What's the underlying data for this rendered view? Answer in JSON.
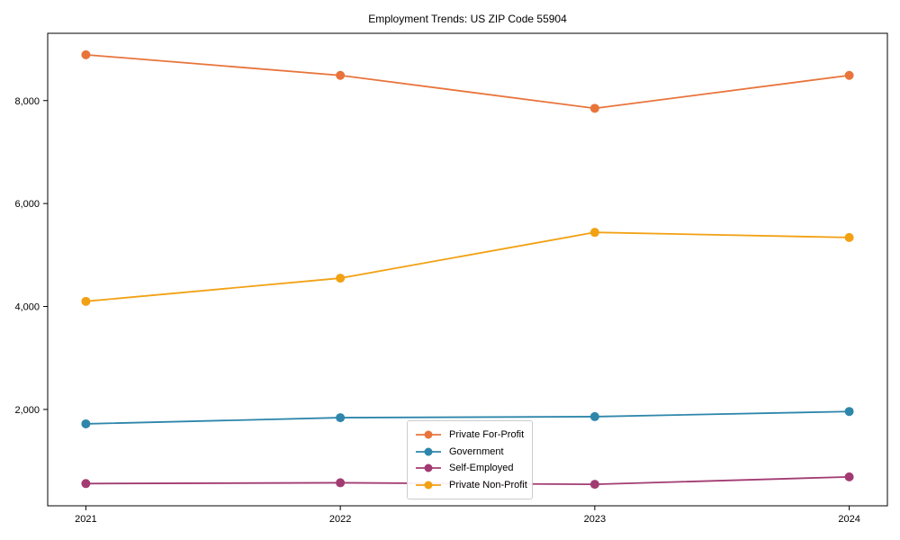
{
  "chart_data": {
    "type": "line",
    "title": "Employment Trends: US ZIP Code 55904",
    "xlabel": "",
    "ylabel": "",
    "x": [
      2021,
      2022,
      2023,
      2024
    ],
    "xticklabels": [
      "2021",
      "2022",
      "2023",
      "2024"
    ],
    "yticks": [
      2000,
      4000,
      6000,
      8000
    ],
    "yticklabels": [
      "2,000",
      "4,000",
      "6,000",
      "8,000"
    ],
    "xlim": [
      2020.85,
      2024.15
    ],
    "ylim": [
      128,
      9307
    ],
    "grid": false,
    "legend_position": "inside-bottom-center",
    "marker": "circle",
    "axis_color": "#000000",
    "background_color": "#ffffff",
    "legend_border_color": "#cccccc",
    "series": [
      {
        "name": "Private For-Profit",
        "color": "#E8743B",
        "values": [
          8890,
          8490,
          7850,
          8490
        ]
      },
      {
        "name": "Government",
        "color": "#2E86AB",
        "values": [
          1720,
          1840,
          1860,
          1960
        ]
      },
      {
        "name": "Self-Employed",
        "color": "#A23B72",
        "values": [
          560,
          575,
          545,
          690
        ]
      },
      {
        "name": "Private Non-Profit",
        "color": "#F2A113",
        "values": [
          4100,
          4550,
          5440,
          5340
        ]
      }
    ]
  }
}
